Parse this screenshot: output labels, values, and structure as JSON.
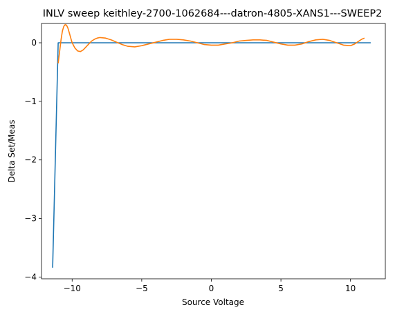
{
  "chart_data": {
    "type": "line",
    "title": "INLV sweep keithley-2700-1062684---datron-4805-XANS1---SWEEP2",
    "xlabel": "Source Voltage",
    "ylabel": "Delta Set/Meas",
    "xlim": [
      -12.2,
      12.5
    ],
    "ylim": [
      -4.03,
      0.33
    ],
    "xticks": [
      -10,
      -5,
      0,
      5,
      10
    ],
    "xtick_labels": [
      "−10",
      "−5",
      "0",
      "5",
      "10"
    ],
    "yticks": [
      -4,
      -3,
      -2,
      -1,
      0
    ],
    "ytick_labels": [
      "−4",
      "−3",
      "−2",
      "−1",
      "0"
    ],
    "grid": false,
    "legend": "none",
    "series": [
      {
        "color": "#1f77b4",
        "x": [
          -11.4,
          -11.0,
          -10.8,
          11.45
        ],
        "y": [
          -3.84,
          0.0,
          0.0,
          0.0
        ]
      },
      {
        "color": "#ff7f0e",
        "x": [
          -11.0,
          -10.9,
          -10.8,
          -10.7,
          -10.6,
          -10.5,
          -10.4,
          -10.3,
          -10.2,
          -10.1,
          -10.0,
          -9.8,
          -9.6,
          -9.4,
          -9.2,
          -9.0,
          -8.8,
          -8.6,
          -8.4,
          -8.2,
          -8.0,
          -7.6,
          -7.2,
          -6.8,
          -6.4,
          -6.0,
          -5.5,
          -5.0,
          -4.5,
          -4.0,
          -3.5,
          -3.0,
          -2.5,
          -2.0,
          -1.5,
          -1.0,
          -0.5,
          0.0,
          0.5,
          1.0,
          1.5,
          2.0,
          2.5,
          3.0,
          3.5,
          4.0,
          4.5,
          5.0,
          5.5,
          6.0,
          6.5,
          7.0,
          7.5,
          8.0,
          8.5,
          9.0,
          9.5,
          10.0,
          10.3,
          10.6,
          10.8,
          11.0
        ],
        "y": [
          -0.35,
          -0.15,
          0.05,
          0.2,
          0.28,
          0.31,
          0.3,
          0.25,
          0.17,
          0.08,
          0.0,
          -0.09,
          -0.14,
          -0.15,
          -0.12,
          -0.07,
          -0.02,
          0.03,
          0.06,
          0.08,
          0.09,
          0.08,
          0.05,
          0.01,
          -0.03,
          -0.06,
          -0.07,
          -0.05,
          -0.02,
          0.01,
          0.04,
          0.06,
          0.06,
          0.05,
          0.03,
          0.0,
          -0.03,
          -0.04,
          -0.04,
          -0.02,
          0.0,
          0.03,
          0.04,
          0.05,
          0.05,
          0.04,
          0.01,
          -0.02,
          -0.04,
          -0.04,
          -0.02,
          0.02,
          0.05,
          0.06,
          0.04,
          0.0,
          -0.04,
          -0.05,
          -0.02,
          0.03,
          0.06,
          0.08
        ]
      }
    ]
  }
}
